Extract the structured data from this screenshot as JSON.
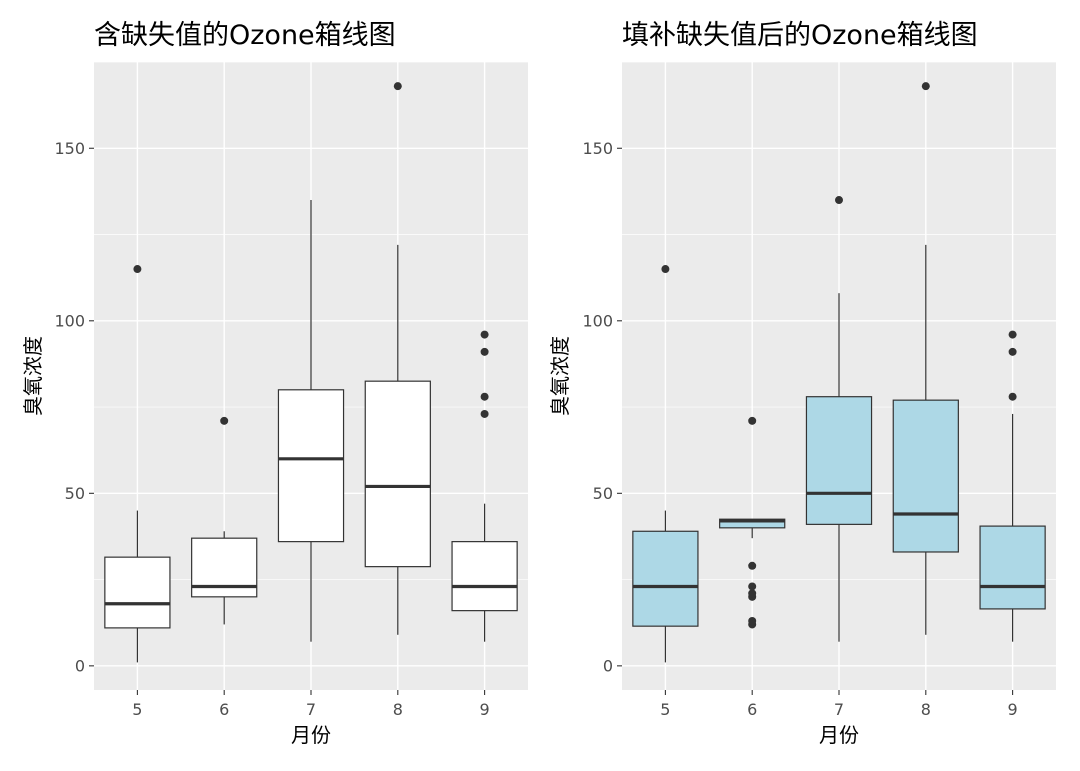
{
  "chart_data": [
    {
      "type": "box",
      "title": "含缺失值的Ozone箱线图",
      "xlabel": "月份",
      "ylabel": "臭氧浓度",
      "categories": [
        "5",
        "6",
        "7",
        "8",
        "9"
      ],
      "ylim": [
        -7,
        175
      ],
      "yticks": [
        0,
        50,
        100,
        150
      ],
      "grid": true,
      "box_fill": "#ffffff",
      "boxes": [
        {
          "lower_whisker": 1,
          "q1": 11,
          "median": 18,
          "q3": 31.5,
          "upper_whisker": 45,
          "outliers": [
            115
          ]
        },
        {
          "lower_whisker": 12,
          "q1": 20,
          "median": 23,
          "q3": 37,
          "upper_whisker": 39,
          "outliers": [
            71
          ]
        },
        {
          "lower_whisker": 7,
          "q1": 36,
          "median": 60,
          "q3": 80,
          "upper_whisker": 135,
          "outliers": []
        },
        {
          "lower_whisker": 9,
          "q1": 28.75,
          "median": 52,
          "q3": 82.5,
          "upper_whisker": 122,
          "outliers": [
            168
          ]
        },
        {
          "lower_whisker": 7,
          "q1": 16,
          "median": 23,
          "q3": 36,
          "upper_whisker": 47,
          "outliers": [
            73,
            78,
            91,
            96
          ]
        }
      ]
    },
    {
      "type": "box",
      "title": "填补缺失值后的Ozone箱线图",
      "xlabel": "月份",
      "ylabel": "臭氧浓度",
      "categories": [
        "5",
        "6",
        "7",
        "8",
        "9"
      ],
      "ylim": [
        -7,
        175
      ],
      "yticks": [
        0,
        50,
        100,
        150
      ],
      "grid": true,
      "box_fill": "#add8e6",
      "boxes": [
        {
          "lower_whisker": 1,
          "q1": 11.5,
          "median": 23,
          "q3": 39,
          "upper_whisker": 45,
          "outliers": [
            115
          ]
        },
        {
          "lower_whisker": 37,
          "q1": 40,
          "median": 42,
          "q3": 42.5,
          "upper_whisker": 42.5,
          "outliers": [
            12,
            13,
            20,
            21,
            23,
            29,
            71
          ]
        },
        {
          "lower_whisker": 7,
          "q1": 41,
          "median": 50,
          "q3": 78,
          "upper_whisker": 108,
          "outliers": [
            135
          ]
        },
        {
          "lower_whisker": 9,
          "q1": 33,
          "median": 44,
          "q3": 77,
          "upper_whisker": 122,
          "outliers": [
            168
          ]
        },
        {
          "lower_whisker": 7,
          "q1": 16.5,
          "median": 23,
          "q3": 40.5,
          "upper_whisker": 73,
          "outliers": [
            78,
            91,
            96
          ]
        }
      ]
    }
  ]
}
